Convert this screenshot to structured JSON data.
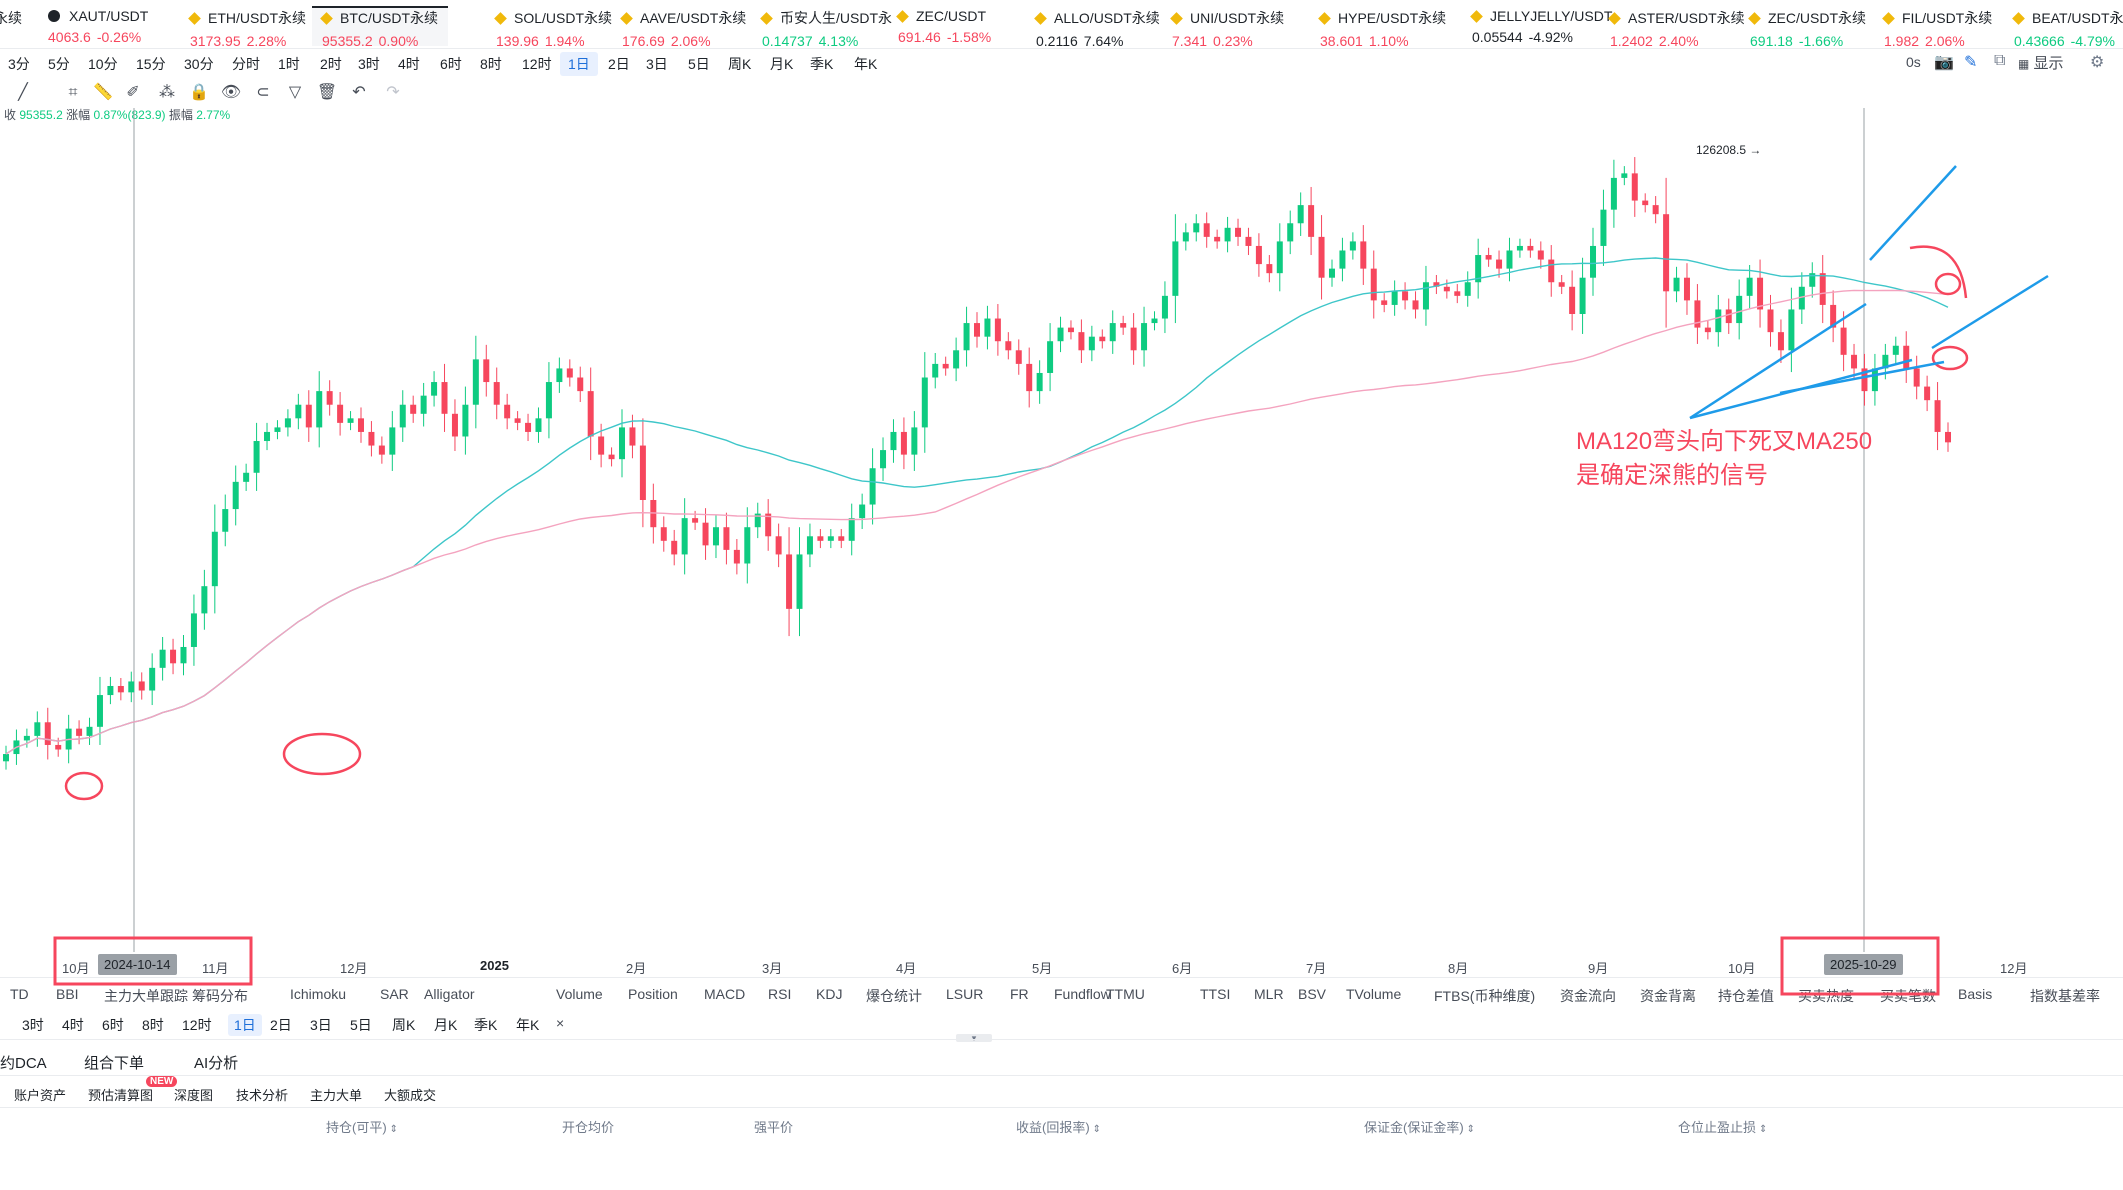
{
  "tickers": [
    {
      "name": "永续",
      "price": "",
      "change": "",
      "price_color": "dn"
    },
    {
      "name": "XAUT/USDT",
      "price": "4063.6",
      "change": "-0.26%",
      "price_color": "dn",
      "icon": "gold-coin-icon"
    },
    {
      "name": "ETH/USDT永续",
      "price": "3173.95",
      "change": "2.28%",
      "price_color": "dn"
    },
    {
      "name": "BTC/USDT永续",
      "price": "95355.2",
      "change": "0.90%",
      "price_color": "dn",
      "active": true
    },
    {
      "name": "SOL/USDT永续",
      "price": "139.96",
      "change": "1.94%",
      "price_color": "dn"
    },
    {
      "name": "AAVE/USDT永续",
      "price": "176.69",
      "change": "2.06%",
      "price_color": "dn"
    },
    {
      "name": "币安人生/USDT永",
      "price": "0.14737",
      "change": "4.13%",
      "price_color": "up"
    },
    {
      "name": "ZEC/USDT",
      "price": "691.46",
      "change": "-1.58%",
      "price_color": "dn"
    },
    {
      "name": "ALLO/USDT永续",
      "price": "0.2116",
      "change": "7.64%",
      "price_color": "blk"
    },
    {
      "name": "UNI/USDT永续",
      "price": "7.341",
      "change": "0.23%",
      "price_color": "dn"
    },
    {
      "name": "HYPE/USDT永续",
      "price": "38.601",
      "change": "1.10%",
      "price_color": "dn"
    },
    {
      "name": "JELLYJELLY/USDT",
      "price": "0.05544",
      "change": "-4.92%",
      "price_color": "blk"
    },
    {
      "name": "ASTER/USDT永续",
      "price": "1.2402",
      "change": "2.40%",
      "price_color": "dn"
    },
    {
      "name": "ZEC/USDT永续",
      "price": "691.18",
      "change": "-1.66%",
      "price_color": "up"
    },
    {
      "name": "FIL/USDT永续",
      "price": "1.982",
      "change": "2.06%",
      "price_color": "dn"
    },
    {
      "name": "BEAT/USDT永续",
      "price": "0.43666",
      "change": "-4.79%",
      "price_color": "up"
    }
  ],
  "intervals": [
    "3分",
    "5分",
    "10分",
    "15分",
    "30分",
    "分时",
    "1时",
    "2时",
    "3时",
    "4时",
    "6时",
    "8时",
    "12时",
    "1日",
    "2日",
    "3日",
    "5日",
    "周K",
    "月K",
    "季K",
    "年K"
  ],
  "selected_interval": "1日",
  "top_right": {
    "countdown": "0s",
    "display": "显示"
  },
  "ohlc": {
    "close_label": "收",
    "close": "95355.2",
    "change_label": "涨幅",
    "change": "0.87%(823.9)",
    "amp_label": "振幅",
    "amp": "2.77%"
  },
  "chart_data": {
    "type": "candlestick",
    "symbol": "BTC/USDT永续",
    "interval": "1日",
    "x_ticks": [
      "10月",
      "2024-10-14",
      "11月",
      "12月",
      "2025",
      "2月",
      "3月",
      "4月",
      "5月",
      "6月",
      "7月",
      "8月",
      "9月",
      "10月",
      "2025-10-29",
      "12月"
    ],
    "high_label": "126208.5",
    "series": [
      {
        "name": "MA120",
        "color": "#3ec6c9"
      },
      {
        "name": "MA250",
        "color": "#f4a3bf"
      }
    ],
    "up_color": "#0ecb81",
    "down_color": "#f6465d",
    "closes": [
      61000,
      62500,
      63000,
      64500,
      62000,
      61500,
      63800,
      63000,
      64000,
      67500,
      68500,
      67800,
      69000,
      68000,
      70500,
      72500,
      71000,
      72800,
      76500,
      79500,
      85500,
      88000,
      91000,
      92000,
      95500,
      96500,
      97000,
      98000,
      99500,
      97000,
      101000,
      99500,
      97500,
      98000,
      96500,
      95000,
      94000,
      97000,
      99500,
      98500,
      100500,
      102000,
      98500,
      96000,
      99500,
      104500,
      102000,
      99500,
      98000,
      97500,
      96500,
      98000,
      102000,
      103500,
      102500,
      101000,
      96000,
      94000,
      93500,
      97000,
      95000,
      89000,
      86000,
      84500,
      83000,
      87000,
      86500,
      84000,
      86000,
      83500,
      82000,
      86000,
      87500,
      85000,
      83000,
      77000,
      83000,
      85000,
      84500,
      85000,
      84500,
      87000,
      88500,
      92500,
      94500,
      96500,
      94000,
      97000,
      102500,
      104000,
      103500,
      105500,
      108500,
      107000,
      109000,
      106500,
      105500,
      104000,
      101000,
      103000,
      106500,
      108000,
      107500,
      105500,
      107000,
      106500,
      108500,
      108000,
      105500,
      108500,
      109000,
      111500,
      117500,
      118500,
      119500,
      118000,
      117500,
      119000,
      118000,
      117000,
      115000,
      114000,
      117500,
      119500,
      121500,
      118000,
      113500,
      114500,
      116500,
      117500,
      114500,
      111000,
      110500,
      112000,
      111000,
      110000,
      113000,
      112500,
      112000,
      111500,
      113000,
      116000,
      115500,
      114500,
      116500,
      117000,
      116500,
      115500,
      113000,
      112500,
      109500,
      113500,
      117000,
      121000,
      124500,
      125000,
      122000,
      121500,
      120500,
      112000,
      113500,
      111000,
      108000,
      107500,
      110000,
      108500,
      111500,
      113500,
      110000,
      107500,
      105500,
      110000,
      112500,
      114000,
      110500,
      108000,
      105000,
      103500,
      101000,
      103500,
      105000,
      106000,
      103500,
      101500,
      100000,
      96500,
      95355
    ]
  },
  "annotation": {
    "line1": "MA120弯头向下死叉MA250",
    "line2": "是确定深熊的信号"
  },
  "indicators": [
    "TD",
    "BBI",
    "主力大单跟踪",
    "筹码分布",
    "Ichimoku",
    "SAR",
    "Alligator",
    "Volume",
    "Position",
    "MACD",
    "RSI",
    "KDJ",
    "爆仓统计",
    "LSUR",
    "FR",
    "Fundflow",
    "TTMU",
    "TTSI",
    "MLR",
    "BSV",
    "TVolume",
    "FTBS(币种维度)",
    "资金流向",
    "资金背离",
    "持仓差值",
    "买卖热度",
    "买卖笔数",
    "Basis",
    "指数基差率"
  ],
  "intervals2": [
    "3时",
    "4时",
    "6时",
    "8时",
    "12时",
    "1日",
    "2日",
    "3日",
    "5日",
    "周K",
    "月K",
    "季K",
    "年K"
  ],
  "bottom_tabs": [
    "约DCA",
    "组合下单",
    "AI分析"
  ],
  "sub_tabs": [
    "账户资产",
    "预估清算图",
    "深度图",
    "技术分析",
    "主力大单",
    "大额成交"
  ],
  "new_badge": "NEW",
  "columns": [
    "持仓(可平)",
    "开仓均价",
    "强平价",
    "收益(回报率)",
    "保证金(保证金率)",
    "仓位止盈止损"
  ]
}
